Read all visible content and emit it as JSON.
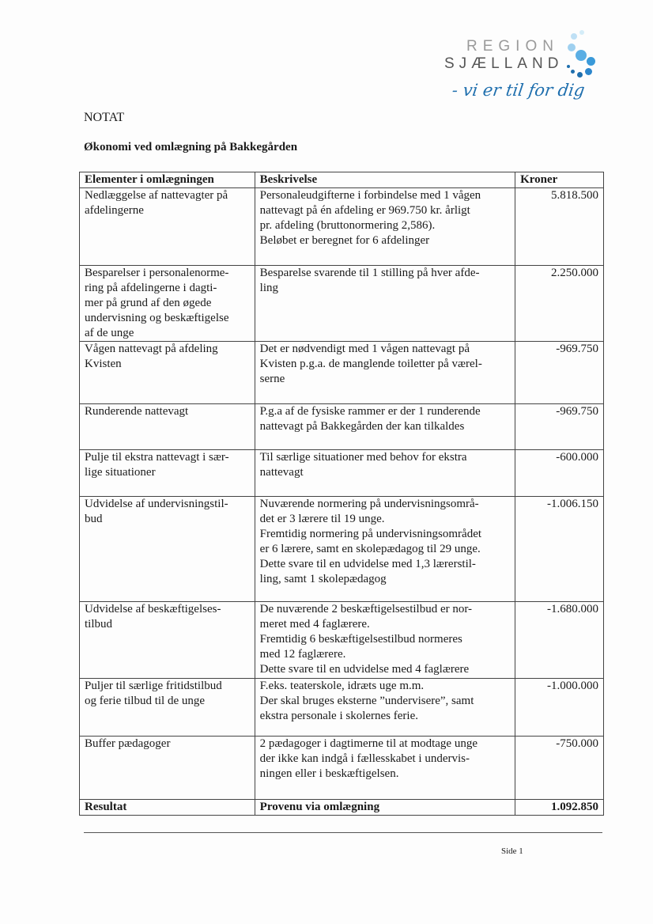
{
  "logo": {
    "line1": "REGION",
    "line2": "SJÆLLAND",
    "tagline": "- vi er til for dig",
    "accent": "#3a9ad9"
  },
  "doc_type": "NOTAT",
  "title": "Økonomi ved omlægning på Bakkegården",
  "table": {
    "headers": [
      "Elementer i omlægningen",
      "Beskrivelse",
      "Kroner"
    ],
    "rows": [
      {
        "element": [
          "Nedlæggelse af nattevagter på",
          "afdelingerne"
        ],
        "description": [
          "Personaleudgifterne i forbindelse med 1 vågen",
          "nattevagt på én afdeling er 969.750 kr. årligt",
          "pr. afdeling (bruttonormering 2,586).",
          "Beløbet er beregnet for 6 afdelinger"
        ],
        "amount": "5.818.500"
      },
      {
        "element": [
          "Besparelser i personalenorme-",
          "ring på afdelingerne i dagti-",
          "mer på grund af den øgede",
          "undervisning og beskæftigelse",
          "af de unge"
        ],
        "description": [
          "Besparelse svarende til 1 stilling på hver afde-",
          "ling"
        ],
        "amount": "2.250.000"
      },
      {
        "element": [
          "Vågen nattevagt på afdeling",
          "Kvisten"
        ],
        "description": [
          "Det er nødvendigt med 1 vågen nattevagt på",
          "Kvisten p.g.a. de manglende toiletter på værel-",
          "serne"
        ],
        "amount": "-969.750"
      },
      {
        "element": [
          "Runderende nattevagt"
        ],
        "description": [
          "P.g.a af de fysiske rammer er der 1 runderende",
          "nattevagt på Bakkegården der kan tilkaldes"
        ],
        "amount": "-969.750"
      },
      {
        "element": [
          "Pulje til ekstra nattevagt i sær-",
          "lige situationer"
        ],
        "description": [
          "Til særlige situationer med behov for ekstra",
          "nattevagt"
        ],
        "amount": "-600.000"
      },
      {
        "element": [
          "Udvidelse af undervisningstil-",
          "bud"
        ],
        "description": [
          "Nuværende normering på undervisningsområ-",
          "det er 3 lærere til 19 unge.",
          "Fremtidig normering på undervisningsområdet",
          "er 6 lærere, samt en skolepædagog til 29 unge.",
          "Dette svare til en udvidelse med 1,3 lærerstil-",
          "ling, samt 1 skolepædagog"
        ],
        "amount": "-1.006.150"
      },
      {
        "element": [
          "Udvidelse af beskæftigelses-",
          "tilbud"
        ],
        "description": [
          "De nuværende 2 beskæftigelsestilbud er nor-",
          "meret med 4 faglærere.",
          "Fremtidig 6 beskæftigelsestilbud normeres",
          "med 12 faglærere.",
          "Dette svare til en udvidelse med 4 faglærere"
        ],
        "amount": "-1.680.000"
      },
      {
        "element": [
          "Puljer til særlige fritidstilbud",
          "og ferie tilbud til de unge"
        ],
        "description": [
          "F.eks. teaterskole, idræts uge m.m.",
          "Der skal bruges eksterne ”undervisere”, samt",
          "ekstra personale i skolernes ferie."
        ],
        "amount": "-1.000.000"
      },
      {
        "element": [
          "Buffer pædagoger"
        ],
        "description": [
          "2 pædagoger i dagtimerne til at modtage unge",
          "der ikke kan indgå i fællesskabet i undervis-",
          "ningen eller i beskæftigelsen."
        ],
        "amount": "-750.000"
      }
    ],
    "result": {
      "element": "Resultat",
      "description": "Provenu via omlægning",
      "amount": "1.092.850"
    }
  },
  "footer": {
    "page": "Side 1"
  }
}
